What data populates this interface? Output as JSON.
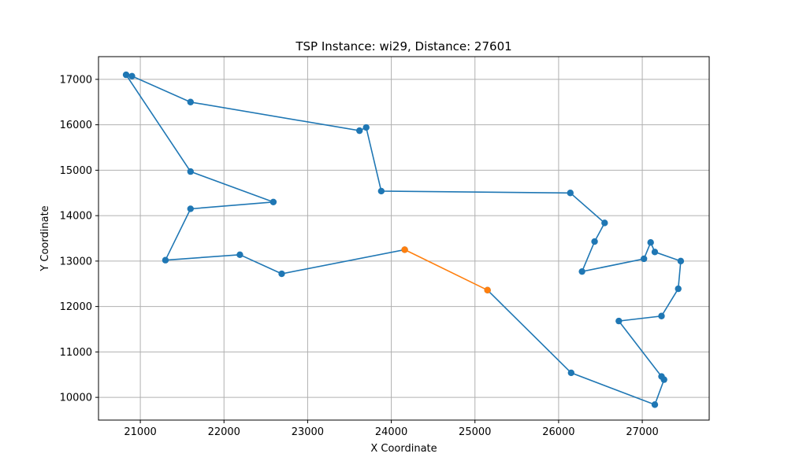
{
  "chart_data": {
    "type": "line",
    "title": "TSP Instance: wi29, Distance: 27601",
    "xlabel": "X Coordinate",
    "ylabel": "Y Coordinate",
    "xlim": [
      20500,
      27800
    ],
    "ylim": [
      9500,
      17500
    ],
    "xticks": [
      21000,
      22000,
      23000,
      24000,
      25000,
      26000,
      27000
    ],
    "yticks": [
      10000,
      11000,
      12000,
      13000,
      14000,
      15000,
      16000,
      17000
    ],
    "grid": true,
    "series": [
      {
        "color": "#1f77b4",
        "marker": "circle",
        "points": [
          [
            25150,
            12360
          ],
          [
            26150,
            10540
          ],
          [
            27150,
            9840
          ],
          [
            27260,
            10390
          ],
          [
            27230,
            10460
          ],
          [
            26720,
            11680
          ],
          [
            27230,
            11790
          ],
          [
            27430,
            12390
          ],
          [
            27460,
            13000
          ],
          [
            27150,
            13200
          ],
          [
            27100,
            13410
          ],
          [
            27020,
            13050
          ],
          [
            26280,
            12770
          ],
          [
            26430,
            13430
          ],
          [
            26550,
            13840
          ],
          [
            26140,
            14500
          ],
          [
            23880,
            14540
          ],
          [
            23700,
            15940
          ],
          [
            23620,
            15870
          ],
          [
            21600,
            16500
          ],
          [
            20900,
            17070
          ],
          [
            20830,
            17100
          ],
          [
            21600,
            14970
          ],
          [
            22590,
            14300
          ],
          [
            21600,
            14150
          ],
          [
            21300,
            13020
          ],
          [
            22190,
            13140
          ],
          [
            22690,
            12720
          ],
          [
            24160,
            13250
          ]
        ]
      },
      {
        "color": "#ff7f0e",
        "marker": "circle",
        "points": [
          [
            24160,
            13250
          ],
          [
            25150,
            12360
          ]
        ]
      }
    ]
  }
}
